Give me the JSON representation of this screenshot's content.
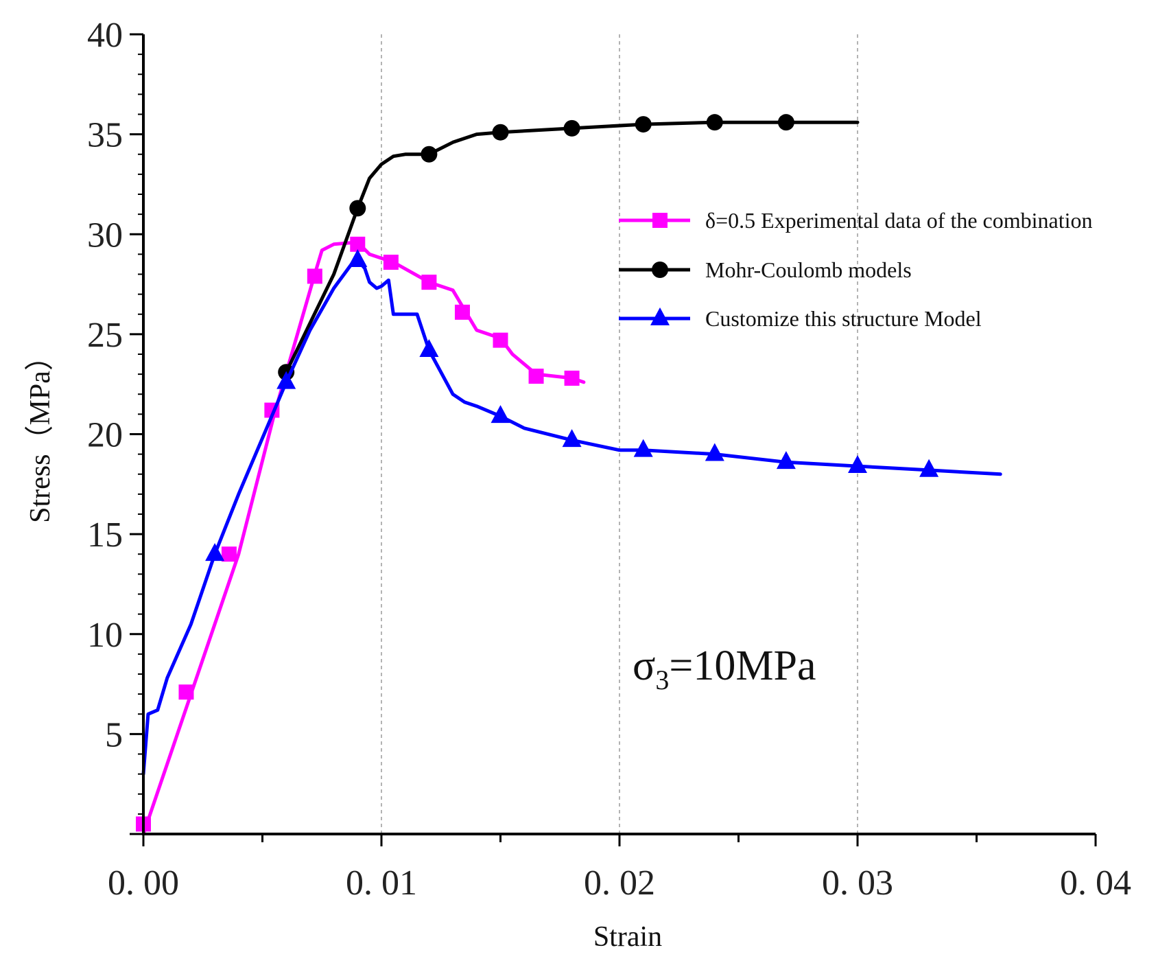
{
  "chart_data": {
    "type": "line",
    "xlabel": "Strain",
    "ylabel": "Stress（MPa）",
    "xlim": [
      0,
      0.04
    ],
    "ylim": [
      0,
      40
    ],
    "x_ticks": [
      0,
      0.01,
      0.02,
      0.03,
      0.04
    ],
    "x_tick_labels": [
      "0. 00",
      "0. 01",
      "0. 02",
      "0. 03",
      "0. 04"
    ],
    "y_ticks": [
      5,
      10,
      15,
      20,
      25,
      30,
      35,
      40
    ],
    "y_tick_labels": [
      "5",
      "10",
      "15",
      "20",
      "25",
      "30",
      "35",
      "40"
    ],
    "vertical_gridlines_at": [
      0.01,
      0.02,
      0.03
    ],
    "legend_position": "right",
    "annotation": {
      "prefix": "σ",
      "subscript": "3",
      "suffix": "=10MPa"
    },
    "series": [
      {
        "name": "δ=0.5 Experimental data of the combination",
        "color": "#ff00ff",
        "marker": "square",
        "points": [
          [
            0,
            0
          ],
          [
            0.002,
            7
          ],
          [
            0.004,
            14
          ],
          [
            0.0055,
            21
          ],
          [
            0.0072,
            28
          ],
          [
            0.0075,
            29.2
          ],
          [
            0.008,
            29.5
          ],
          [
            0.009,
            29.6
          ],
          [
            0.0095,
            29
          ],
          [
            0.0105,
            28.6
          ],
          [
            0.012,
            27.6
          ],
          [
            0.013,
            27.2
          ],
          [
            0.0135,
            26.2
          ],
          [
            0.014,
            25.2
          ],
          [
            0.015,
            24.8
          ],
          [
            0.0155,
            24
          ],
          [
            0.0165,
            23
          ],
          [
            0.018,
            22.8
          ],
          [
            0.0185,
            22.6
          ]
        ],
        "marker_points": [
          [
            0,
            0.5
          ],
          [
            0.0018,
            7.1
          ],
          [
            0.0036,
            14
          ],
          [
            0.0054,
            21.2
          ],
          [
            0.0072,
            27.9
          ],
          [
            0.009,
            29.5
          ],
          [
            0.0104,
            28.6
          ],
          [
            0.012,
            27.6
          ],
          [
            0.0134,
            26.1
          ],
          [
            0.015,
            24.7
          ],
          [
            0.0165,
            22.9
          ],
          [
            0.018,
            22.8
          ]
        ]
      },
      {
        "name": "Mohr-Coulomb models",
        "color": "#000000",
        "marker": "circle",
        "points": [
          [
            0.006,
            23.1
          ],
          [
            0.008,
            28
          ],
          [
            0.009,
            31.3
          ],
          [
            0.0095,
            32.8
          ],
          [
            0.01,
            33.5
          ],
          [
            0.0105,
            33.9
          ],
          [
            0.011,
            34
          ],
          [
            0.012,
            34
          ],
          [
            0.013,
            34.6
          ],
          [
            0.014,
            35
          ],
          [
            0.015,
            35.1
          ],
          [
            0.018,
            35.3
          ],
          [
            0.021,
            35.5
          ],
          [
            0.024,
            35.6
          ],
          [
            0.027,
            35.6
          ],
          [
            0.03,
            35.6
          ]
        ],
        "marker_points": [
          [
            0.006,
            23.1
          ],
          [
            0.009,
            31.3
          ],
          [
            0.012,
            34
          ],
          [
            0.015,
            35.1
          ],
          [
            0.018,
            35.3
          ],
          [
            0.021,
            35.5
          ],
          [
            0.024,
            35.6
          ],
          [
            0.027,
            35.6
          ]
        ]
      },
      {
        "name": "Customize this structure Model",
        "color": "#0000ff",
        "marker": "triangle",
        "points": [
          [
            0,
            3
          ],
          [
            0.0002,
            6
          ],
          [
            0.0006,
            6.2
          ],
          [
            0.001,
            7.8
          ],
          [
            0.002,
            10.5
          ],
          [
            0.003,
            14
          ],
          [
            0.004,
            17
          ],
          [
            0.005,
            19.8
          ],
          [
            0.006,
            22.6
          ],
          [
            0.007,
            25.2
          ],
          [
            0.008,
            27.3
          ],
          [
            0.0088,
            28.6
          ],
          [
            0.009,
            28.7
          ],
          [
            0.0093,
            28.3
          ],
          [
            0.0095,
            27.6
          ],
          [
            0.0098,
            27.3
          ],
          [
            0.01,
            27.4
          ],
          [
            0.0103,
            27.7
          ],
          [
            0.0105,
            26
          ],
          [
            0.011,
            26
          ],
          [
            0.0115,
            26
          ],
          [
            0.012,
            24.2
          ],
          [
            0.013,
            22
          ],
          [
            0.0135,
            21.6
          ],
          [
            0.014,
            21.4
          ],
          [
            0.015,
            20.9
          ],
          [
            0.016,
            20.3
          ],
          [
            0.018,
            19.7
          ],
          [
            0.02,
            19.2
          ],
          [
            0.021,
            19.2
          ],
          [
            0.024,
            19
          ],
          [
            0.027,
            18.6
          ],
          [
            0.03,
            18.4
          ],
          [
            0.033,
            18.2
          ],
          [
            0.036,
            18
          ]
        ],
        "marker_points": [
          [
            0.003,
            14
          ],
          [
            0.006,
            22.6
          ],
          [
            0.009,
            28.7
          ],
          [
            0.012,
            24.2
          ],
          [
            0.015,
            20.9
          ],
          [
            0.018,
            19.7
          ],
          [
            0.021,
            19.2
          ],
          [
            0.024,
            19
          ],
          [
            0.027,
            18.6
          ],
          [
            0.03,
            18.4
          ],
          [
            0.033,
            18.2
          ]
        ]
      }
    ]
  }
}
